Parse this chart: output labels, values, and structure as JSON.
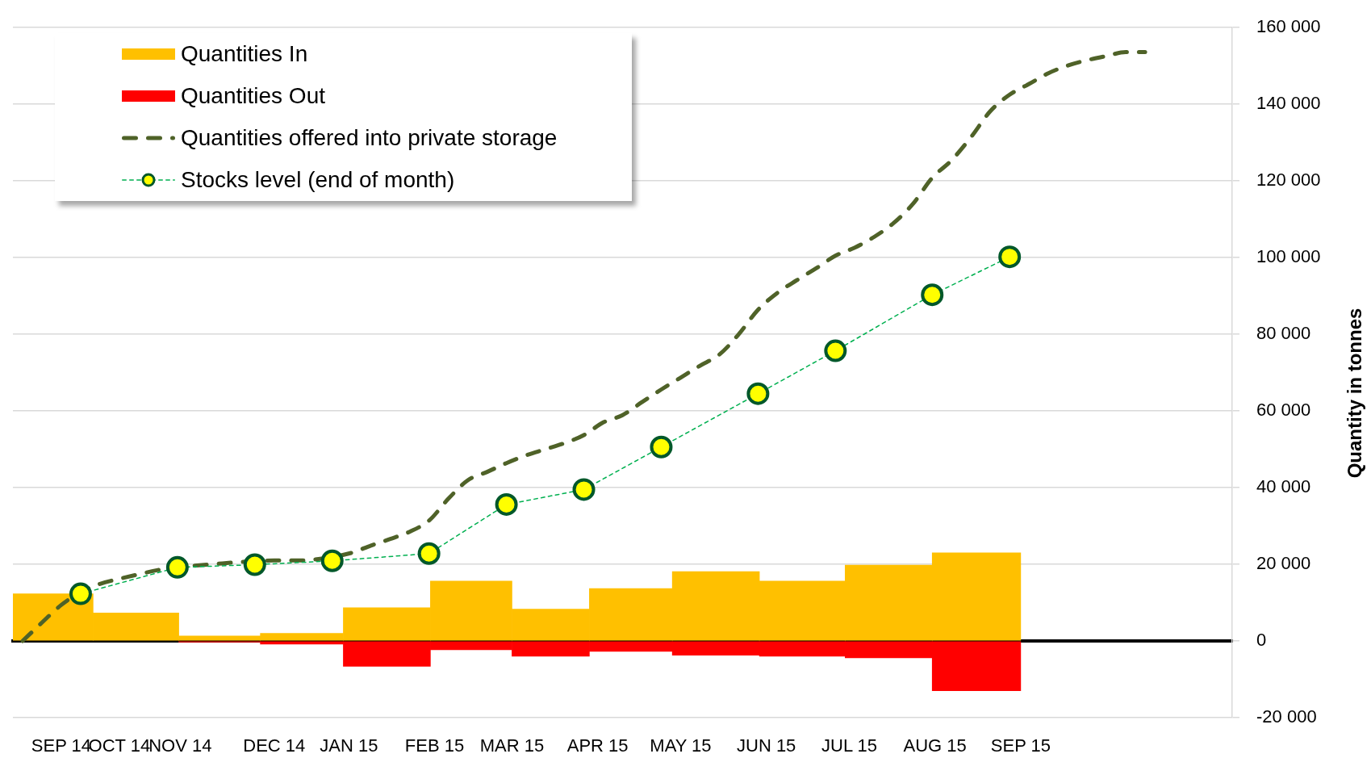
{
  "chart_data": {
    "type": "bar",
    "stacked": true,
    "grid": "y",
    "legend": "top left",
    "ylabel": "Quantity in tonnes",
    "xlim": [
      "2014-09-01T12:00",
      "2015-11-16T12:00"
    ],
    "xticks": [
      {
        "value": "2014-09-19",
        "label": "SEP 14"
      },
      {
        "value": "2014-10-10",
        "label": "OCT 14"
      },
      {
        "value": "2014-11-01",
        "label": "NOV 14"
      },
      {
        "value": "2014-12-05",
        "label": "DEC 14"
      },
      {
        "value": "2015-01-01",
        "label": "JAN 15"
      },
      {
        "value": "2015-02-01",
        "label": "FEB 15"
      },
      {
        "value": "2015-03-01",
        "label": "MAR 15"
      },
      {
        "value": "2015-04-01",
        "label": "APR 15"
      },
      {
        "value": "2015-05-01",
        "label": "MAY 15"
      },
      {
        "value": "2015-06-01",
        "label": "JUN 15"
      },
      {
        "value": "2015-07-01",
        "label": "JUL 15"
      },
      {
        "value": "2015-08-01",
        "label": "AUG 15"
      },
      {
        "value": "2015-09-01",
        "label": "SEP 15"
      }
    ],
    "ylim": [
      -20000,
      160000
    ],
    "yticks": [
      {
        "value": -20000,
        "label": "-20 000"
      },
      0,
      {
        "value": 20000,
        "label": "20 000"
      },
      {
        "value": 40000,
        "label": "40 000"
      },
      {
        "value": 60000,
        "label": "60 000"
      },
      {
        "value": 80000,
        "label": "80 000"
      },
      {
        "value": 100000,
        "label": "100 000"
      },
      {
        "value": 120000,
        "label": "120 000"
      },
      {
        "value": 140000,
        "label": "140 000"
      },
      {
        "value": 160000,
        "label": "160 000"
      }
    ],
    "x": [
      "2014-09-15",
      "2014-10-16",
      "2014-11-16",
      "2014-12-14",
      "2015-01-15",
      "2015-02-15",
      "2015-03-15",
      "2015-04-12",
      "2015-05-14",
      "2015-06-14",
      "2015-07-15",
      "2015-08-16"
    ],
    "series": [
      {
        "name": "Quantities In",
        "color": "#ffc000",
        "values": [
          12300,
          7300,
          1300,
          2000,
          8700,
          15600,
          8300,
          13700,
          18100,
          15600,
          19800,
          23000
        ]
      },
      {
        "name": "Quantities Out",
        "color": "#ff0000",
        "values": [
          null,
          null,
          -300,
          -800,
          -6600,
          -2300,
          -4000,
          -2700,
          -3700,
          -4000,
          -4400,
          -13000
        ]
      },
      {
        "name": "Quantities offered into private storage",
        "type": "line",
        "line_style": "dashed",
        "marker": "none",
        "color": "#4f6228",
        "x": [
          "2014-09-05",
          "2014-09-12",
          "2014-09-19",
          "2014-09-26",
          "2014-10-03",
          "2014-10-10",
          "2014-10-17",
          "2014-10-24",
          "2014-10-31",
          "2014-11-07",
          "2014-11-14",
          "2014-11-21",
          "2014-12-05",
          "2014-12-12",
          "2014-12-19",
          "2015-01-02",
          "2015-01-09",
          "2015-01-16",
          "2015-01-23",
          "2015-01-30",
          "2015-02-06",
          "2015-02-13",
          "2015-02-20",
          "2015-02-27",
          "2015-03-06",
          "2015-03-13",
          "2015-03-20",
          "2015-03-27",
          "2015-04-03",
          "2015-04-10",
          "2015-04-17",
          "2015-04-24",
          "2015-05-01",
          "2015-05-08",
          "2015-05-15",
          "2015-05-22",
          "2015-05-29",
          "2015-06-05",
          "2015-06-12",
          "2015-06-19",
          "2015-06-26",
          "2015-07-03",
          "2015-07-10",
          "2015-07-17",
          "2015-07-24",
          "2015-07-31",
          "2015-08-07",
          "2015-08-14",
          "2015-08-21",
          "2015-08-28",
          "2015-09-04",
          "2015-09-11",
          "2015-09-18",
          "2015-09-25",
          "2015-10-02",
          "2015-10-09",
          "2015-10-16"
        ],
        "values": [
          0,
          4800,
          9400,
          12700,
          14900,
          16200,
          17400,
          18500,
          19300,
          19700,
          20100,
          20500,
          21000,
          21000,
          21200,
          23000,
          24900,
          26600,
          28500,
          31400,
          37100,
          41900,
          44100,
          46400,
          48400,
          50000,
          51600,
          53700,
          57000,
          58900,
          62300,
          65600,
          68700,
          71800,
          74700,
          80000,
          86400,
          90800,
          94100,
          97200,
          100500,
          102600,
          105400,
          109000,
          114000,
          120800,
          125400,
          131400,
          138200,
          142500,
          145300,
          148100,
          150100,
          151500,
          152600,
          153600,
          153600
        ]
      },
      {
        "name": "Stocks level (end of month)",
        "type": "line",
        "line_style": "dashed",
        "marker": "circle",
        "color": "#00b050",
        "x": [
          "2014-09-26",
          "2014-10-31",
          "2014-11-28",
          "2014-12-26",
          "2015-01-30",
          "2015-02-27",
          "2015-03-27",
          "2015-04-24",
          "2015-05-29",
          "2015-06-26",
          "2015-07-31",
          "2015-08-28"
        ],
        "values": [
          12300,
          19200,
          19900,
          20900,
          22800,
          35600,
          39500,
          50600,
          64500,
          75700,
          90300,
          100200
        ]
      }
    ]
  }
}
